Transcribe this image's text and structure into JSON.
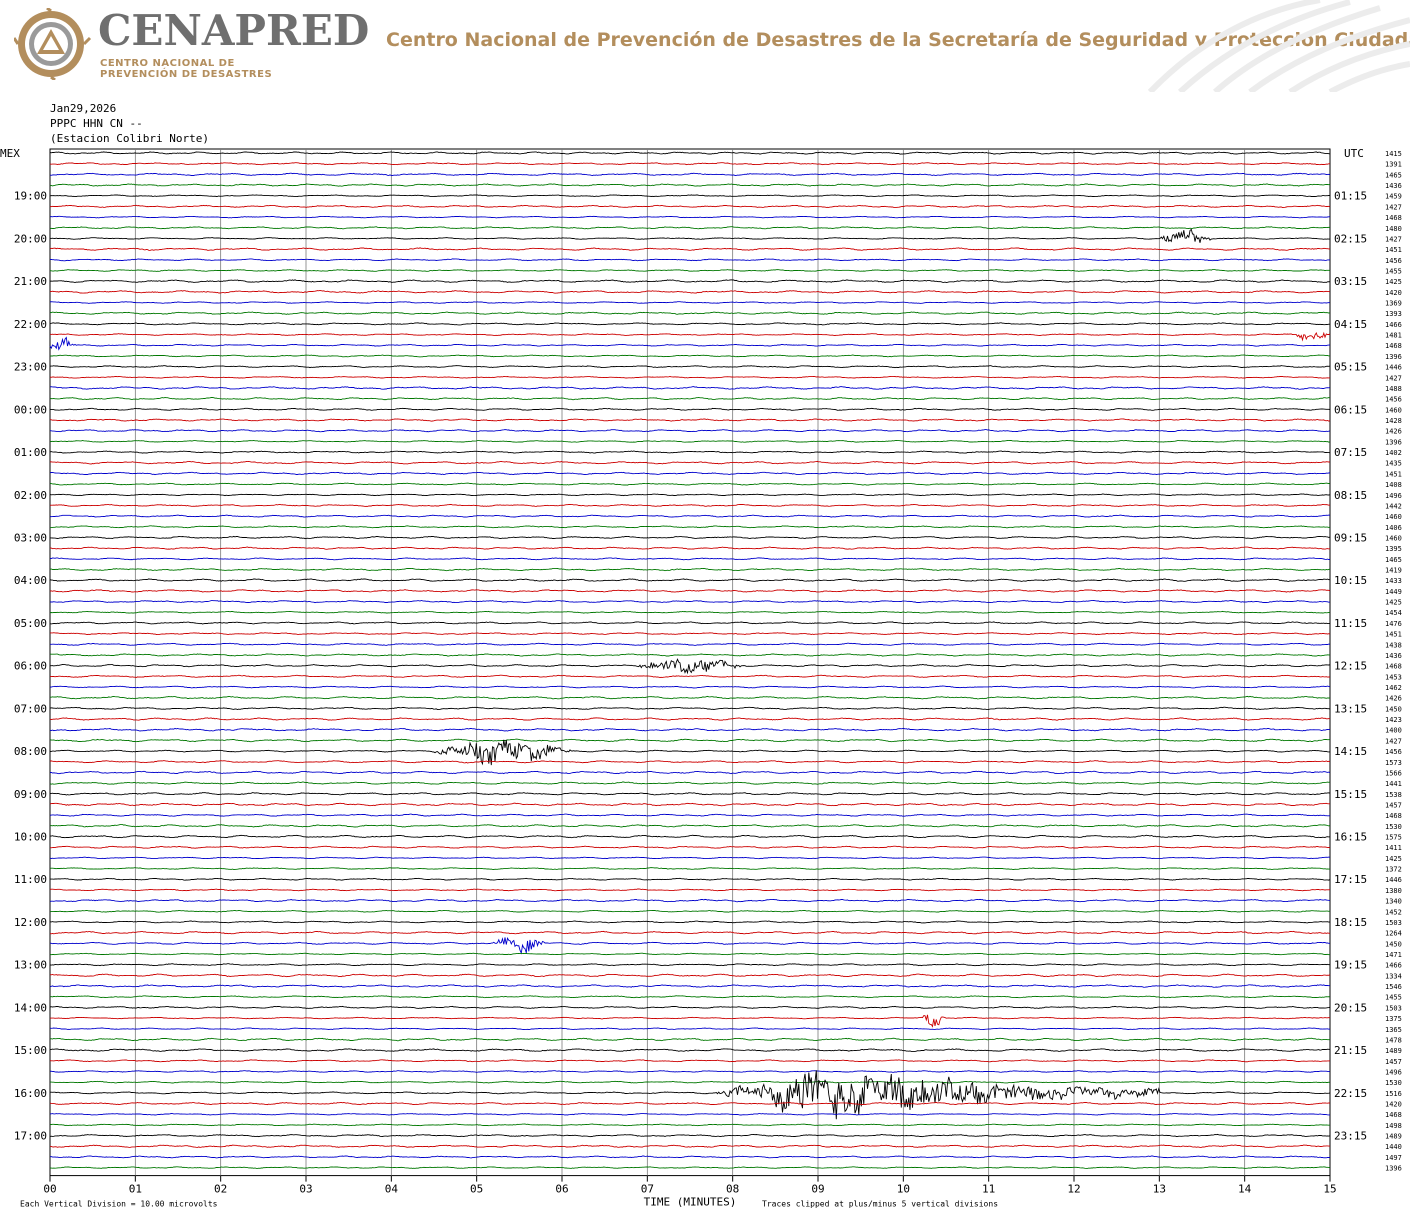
{
  "header": {
    "brand": "CENAPRED",
    "brand_sub_line1": "CENTRO NACIONAL DE",
    "brand_sub_line2": "PREVENCIÓN DE DESASTRES",
    "tagline": "Centro Nacional de Prevención de Desastres de la Secretaría de Seguridad y Protección Ciudadana",
    "logo_icon": "cenapred-triangle-seal-icon",
    "pattern_icon": "decorative-greca-pattern-icon"
  },
  "station": {
    "date": "Jan29,2026",
    "channel": "PPPC HHN CN --",
    "name": "(Estacion Colibri Norte)"
  },
  "chart_data": {
    "type": "line",
    "title": "",
    "xlabel": "TIME (MINUTES)",
    "left_axis_label": "MEX",
    "right_axis_label": "UTC",
    "xlim": [
      0,
      15
    ],
    "x_ticks": [
      "00",
      "01",
      "02",
      "03",
      "04",
      "05",
      "06",
      "07",
      "08",
      "09",
      "10",
      "11",
      "12",
      "13",
      "14",
      "15"
    ],
    "trace_count": 96,
    "trace_colors": [
      "#000000",
      "#cc0000",
      "#0000cc",
      "#007700"
    ],
    "left_hour_labels": [
      "19:00",
      "20:00",
      "21:00",
      "22:00",
      "23:00",
      "00:00",
      "01:00",
      "02:00",
      "03:00",
      "04:00",
      "05:00",
      "06:00",
      "07:00",
      "08:00",
      "09:00",
      "10:00",
      "11:00",
      "12:00",
      "13:00",
      "14:00",
      "15:00",
      "16:00",
      "17:00"
    ],
    "right_hour_labels": [
      "01:15",
      "02:15",
      "03:15",
      "04:15",
      "05:15",
      "06:15",
      "07:15",
      "08:15",
      "09:15",
      "10:15",
      "11:15",
      "12:15",
      "13:15",
      "14:15",
      "15:15",
      "16:15",
      "17:15",
      "18:15",
      "19:15",
      "20:15",
      "21:15",
      "22:15",
      "23:15"
    ],
    "right_trace_values": [
      "1415",
      "1391",
      "1465",
      "1436",
      "1459",
      "1427",
      "1468",
      "1480",
      "1427",
      "1451",
      "1456",
      "1455",
      "1425",
      "1420",
      "1369",
      "1393",
      "1466",
      "1481",
      "1468",
      "1396",
      "1446",
      "1427",
      "1488",
      "1456",
      "1460",
      "1428",
      "1426",
      "1396",
      "1402",
      "1435",
      "1451",
      "1408",
      "1496",
      "1442",
      "1460",
      "1406",
      "1460",
      "1395",
      "1465",
      "1419",
      "1433",
      "1449",
      "1425",
      "1454",
      "1476",
      "1451",
      "1438",
      "1436",
      "1468",
      "1453",
      "1462",
      "1426",
      "1450",
      "1423",
      "1400",
      "1427",
      "1456",
      "1573",
      "1566",
      "1441",
      "1538",
      "1457",
      "1468",
      "1530",
      "1575",
      "1411",
      "1425",
      "1372",
      "1446",
      "1380",
      "1340",
      "1452",
      "1503",
      "1264",
      "1450",
      "1471",
      "1466",
      "1334",
      "1546",
      "1455",
      "1503",
      "1375",
      "1365",
      "1478",
      "1489",
      "1457",
      "1496",
      "1530",
      "1516",
      "1420",
      "1468",
      "1498",
      "1489",
      "1440",
      "1497",
      "1396"
    ],
    "events": [
      {
        "trace": 8,
        "start_min": 13.0,
        "end_min": 13.6,
        "amplitude": 1.5
      },
      {
        "trace": 17,
        "start_min": 14.6,
        "end_min": 15.0,
        "amplitude": 1.3
      },
      {
        "trace": 18,
        "start_min": 0.0,
        "end_min": 0.3,
        "amplitude": 1.3
      },
      {
        "trace": 48,
        "start_min": 6.9,
        "end_min": 8.1,
        "amplitude": 1.1
      },
      {
        "trace": 56,
        "start_min": 4.5,
        "end_min": 6.1,
        "amplitude": 2.2
      },
      {
        "trace": 74,
        "start_min": 5.2,
        "end_min": 5.8,
        "amplitude": 1.6
      },
      {
        "trace": 81,
        "start_min": 10.2,
        "end_min": 10.5,
        "amplitude": 1.3
      },
      {
        "trace": 88,
        "start_min": 7.8,
        "end_min": 13.0,
        "amplitude": 5.0
      }
    ],
    "footer_left": "Each Vertical Division =   10.00 microvolts",
    "footer_right": "Traces clipped at plus/minus 5 vertical divisions"
  }
}
